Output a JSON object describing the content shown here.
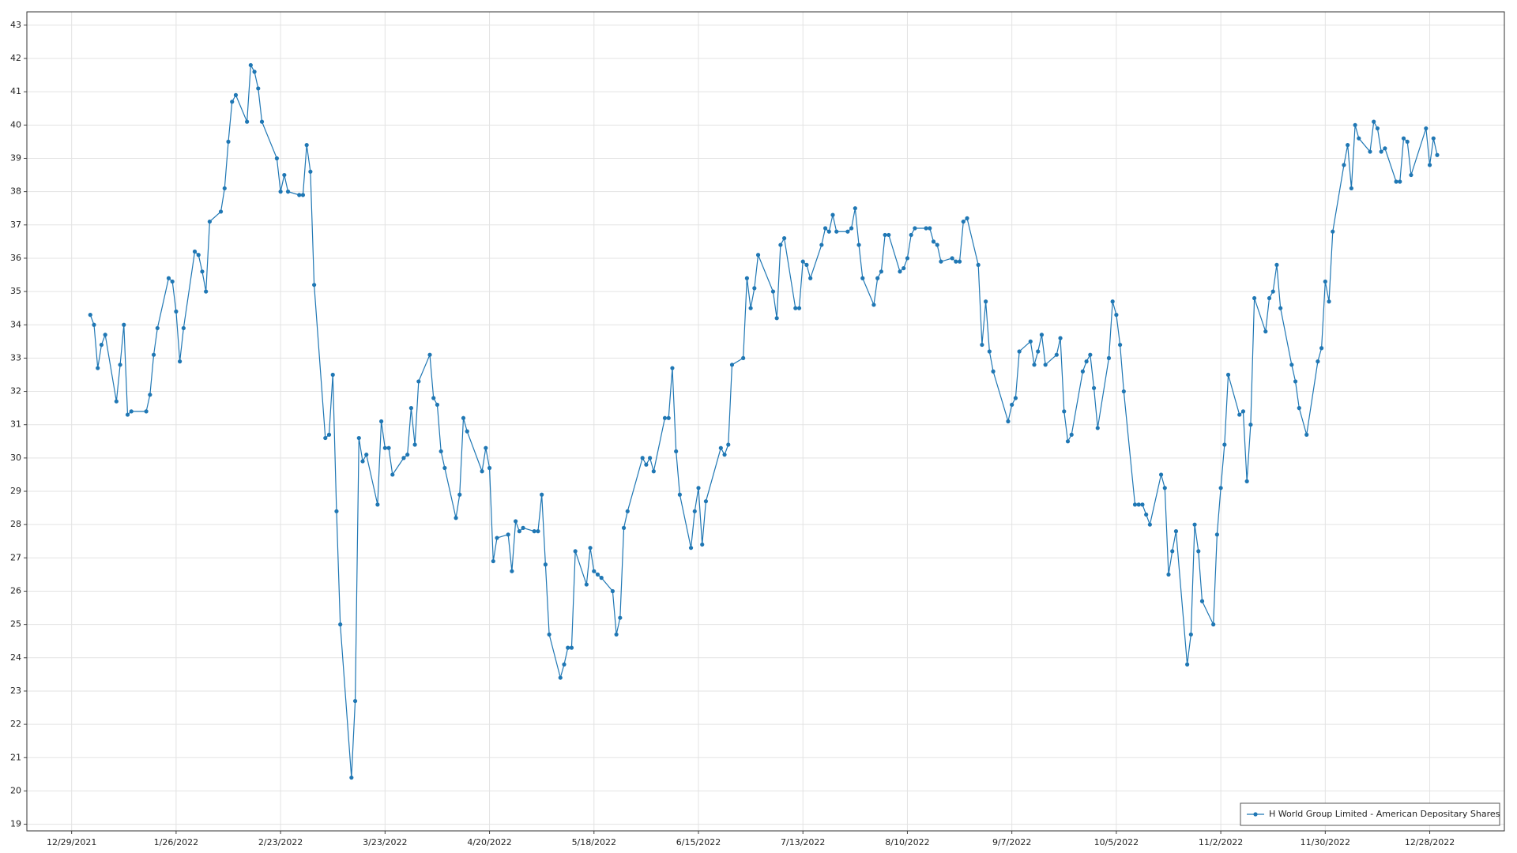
{
  "chart_data": {
    "type": "line",
    "x": [
      "1/3/2022",
      "1/4/2022",
      "1/5/2022",
      "1/6/2022",
      "1/7/2022",
      "1/10/2022",
      "1/11/2022",
      "1/12/2022",
      "1/13/2022",
      "1/14/2022",
      "1/18/2022",
      "1/19/2022",
      "1/20/2022",
      "1/21/2022",
      "1/24/2022",
      "1/25/2022",
      "1/26/2022",
      "1/27/2022",
      "1/28/2022",
      "1/31/2022",
      "2/1/2022",
      "2/2/2022",
      "2/3/2022",
      "2/4/2022",
      "2/7/2022",
      "2/8/2022",
      "2/9/2022",
      "2/10/2022",
      "2/11/2022",
      "2/14/2022",
      "2/15/2022",
      "2/16/2022",
      "2/17/2022",
      "2/18/2022",
      "2/22/2022",
      "2/23/2022",
      "2/24/2022",
      "2/25/2022",
      "2/28/2022",
      "3/1/2022",
      "3/2/2022",
      "3/3/2022",
      "3/4/2022",
      "3/7/2022",
      "3/8/2022",
      "3/9/2022",
      "3/10/2022",
      "3/11/2022",
      "3/14/2022",
      "3/15/2022",
      "3/16/2022",
      "3/17/2022",
      "3/18/2022",
      "3/21/2022",
      "3/22/2022",
      "3/23/2022",
      "3/24/2022",
      "3/25/2022",
      "3/28/2022",
      "3/29/2022",
      "3/30/2022",
      "3/31/2022",
      "4/1/2022",
      "4/4/2022",
      "4/5/2022",
      "4/6/2022",
      "4/7/2022",
      "4/8/2022",
      "4/11/2022",
      "4/12/2022",
      "4/13/2022",
      "4/14/2022",
      "4/18/2022",
      "4/19/2022",
      "4/20/2022",
      "4/21/2022",
      "4/22/2022",
      "4/25/2022",
      "4/26/2022",
      "4/27/2022",
      "4/28/2022",
      "4/29/2022",
      "5/2/2022",
      "5/3/2022",
      "5/4/2022",
      "5/5/2022",
      "5/6/2022",
      "5/9/2022",
      "5/10/2022",
      "5/11/2022",
      "5/12/2022",
      "5/13/2022",
      "5/16/2022",
      "5/17/2022",
      "5/18/2022",
      "5/19/2022",
      "5/20/2022",
      "5/23/2022",
      "5/24/2022",
      "5/25/2022",
      "5/26/2022",
      "5/27/2022",
      "5/31/2022",
      "6/1/2022",
      "6/2/2022",
      "6/3/2022",
      "6/6/2022",
      "6/7/2022",
      "6/8/2022",
      "6/9/2022",
      "6/10/2022",
      "6/13/2022",
      "6/14/2022",
      "6/15/2022",
      "6/16/2022",
      "6/17/2022",
      "6/21/2022",
      "6/22/2022",
      "6/23/2022",
      "6/24/2022",
      "6/27/2022",
      "6/28/2022",
      "6/29/2022",
      "6/30/2022",
      "7/1/2022",
      "7/5/2022",
      "7/6/2022",
      "7/7/2022",
      "7/8/2022",
      "7/11/2022",
      "7/12/2022",
      "7/13/2022",
      "7/14/2022",
      "7/15/2022",
      "7/18/2022",
      "7/19/2022",
      "7/20/2022",
      "7/21/2022",
      "7/22/2022",
      "7/25/2022",
      "7/26/2022",
      "7/27/2022",
      "7/28/2022",
      "7/29/2022",
      "8/1/2022",
      "8/2/2022",
      "8/3/2022",
      "8/4/2022",
      "8/5/2022",
      "8/8/2022",
      "8/9/2022",
      "8/10/2022",
      "8/11/2022",
      "8/12/2022",
      "8/15/2022",
      "8/16/2022",
      "8/17/2022",
      "8/18/2022",
      "8/19/2022",
      "8/22/2022",
      "8/23/2022",
      "8/24/2022",
      "8/25/2022",
      "8/26/2022",
      "8/29/2022",
      "8/30/2022",
      "8/31/2022",
      "9/1/2022",
      "9/2/2022",
      "9/6/2022",
      "9/7/2022",
      "9/8/2022",
      "9/9/2022",
      "9/12/2022",
      "9/13/2022",
      "9/14/2022",
      "9/15/2022",
      "9/16/2022",
      "9/19/2022",
      "9/20/2022",
      "9/21/2022",
      "9/22/2022",
      "9/23/2022",
      "9/26/2022",
      "9/27/2022",
      "9/28/2022",
      "9/29/2022",
      "9/30/2022",
      "10/3/2022",
      "10/4/2022",
      "10/5/2022",
      "10/6/2022",
      "10/7/2022",
      "10/10/2022",
      "10/11/2022",
      "10/12/2022",
      "10/13/2022",
      "10/14/2022",
      "10/17/2022",
      "10/18/2022",
      "10/19/2022",
      "10/20/2022",
      "10/21/2022",
      "10/24/2022",
      "10/25/2022",
      "10/26/2022",
      "10/27/2022",
      "10/28/2022",
      "10/31/2022",
      "11/1/2022",
      "11/2/2022",
      "11/3/2022",
      "11/4/2022",
      "11/7/2022",
      "11/8/2022",
      "11/9/2022",
      "11/10/2022",
      "11/11/2022",
      "11/14/2022",
      "11/15/2022",
      "11/16/2022",
      "11/17/2022",
      "11/18/2022",
      "11/21/2022",
      "11/22/2022",
      "11/23/2022",
      "11/25/2022",
      "11/28/2022",
      "11/29/2022",
      "11/30/2022",
      "12/1/2022",
      "12/2/2022",
      "12/5/2022",
      "12/6/2022",
      "12/7/2022",
      "12/8/2022",
      "12/9/2022",
      "12/12/2022",
      "12/13/2022",
      "12/14/2022",
      "12/15/2022",
      "12/16/2022",
      "12/19/2022",
      "12/20/2022",
      "12/21/2022",
      "12/22/2022",
      "12/23/2022",
      "12/27/2022",
      "12/28/2022",
      "12/29/2022",
      "12/30/2022"
    ],
    "series": [
      {
        "name": "H World Group Limited - American Depositary Shares",
        "color": "#1f77b4",
        "values": [
          34.3,
          34.0,
          32.7,
          33.4,
          33.7,
          31.7,
          32.8,
          34.0,
          31.3,
          31.4,
          31.4,
          31.9,
          33.1,
          33.9,
          35.4,
          35.3,
          34.4,
          32.9,
          33.9,
          36.2,
          36.1,
          35.6,
          35.0,
          37.1,
          37.4,
          38.1,
          39.5,
          40.7,
          40.9,
          40.1,
          41.8,
          41.6,
          41.1,
          40.1,
          39.0,
          38.0,
          38.5,
          38.0,
          37.9,
          37.9,
          39.4,
          38.6,
          35.2,
          30.6,
          30.7,
          32.5,
          28.4,
          25.0,
          20.4,
          22.7,
          30.6,
          29.9,
          30.1,
          28.6,
          31.1,
          30.3,
          30.3,
          29.5,
          30.0,
          30.1,
          31.5,
          30.4,
          32.3,
          33.1,
          31.8,
          31.6,
          30.2,
          29.7,
          28.2,
          28.9,
          31.2,
          30.8,
          29.6,
          30.3,
          29.7,
          26.9,
          27.6,
          27.7,
          26.6,
          28.1,
          27.8,
          27.9,
          27.8,
          27.8,
          28.9,
          26.8,
          24.7,
          23.4,
          23.8,
          24.3,
          24.3,
          27.2,
          26.2,
          27.3,
          26.6,
          26.5,
          26.4,
          26.0,
          24.7,
          25.2,
          27.9,
          28.4,
          30.0,
          29.8,
          30.0,
          29.6,
          31.2,
          31.2,
          32.7,
          30.2,
          28.9,
          27.3,
          28.4,
          29.1,
          27.4,
          28.7,
          30.3,
          30.1,
          30.4,
          32.8,
          33.0,
          35.4,
          34.5,
          35.1,
          36.1,
          35.0,
          34.2,
          36.4,
          36.6,
          34.5,
          34.5,
          35.9,
          35.8,
          35.4,
          36.4,
          36.9,
          36.8,
          37.3,
          36.8,
          36.8,
          36.9,
          37.5,
          36.4,
          35.4,
          34.6,
          35.4,
          35.6,
          36.7,
          36.7,
          35.6,
          35.7,
          36.0,
          36.7,
          36.9,
          36.9,
          36.9,
          36.5,
          36.4,
          35.9,
          36.0,
          35.9,
          35.9,
          37.1,
          37.2,
          35.8,
          33.4,
          34.7,
          33.2,
          32.6,
          31.1,
          31.6,
          31.8,
          33.2,
          33.5,
          32.8,
          33.2,
          33.7,
          32.8,
          33.1,
          33.6,
          31.4,
          30.5,
          30.7,
          32.6,
          32.9,
          33.1,
          32.1,
          30.9,
          33.0,
          34.7,
          34.3,
          33.4,
          32.0,
          28.6,
          28.6,
          28.6,
          28.3,
          28.0,
          29.5,
          29.1,
          26.5,
          27.2,
          27.8,
          23.8,
          24.7,
          28.0,
          27.2,
          25.7,
          25.0,
          27.7,
          29.1,
          30.4,
          32.5,
          31.3,
          31.4,
          29.3,
          31.0,
          34.8,
          33.8,
          34.8,
          35.0,
          35.8,
          34.5,
          32.8,
          32.3,
          31.5,
          30.7,
          32.9,
          33.3,
          35.3,
          34.7,
          36.8,
          38.8,
          39.4,
          38.1,
          40.0,
          39.6,
          39.2,
          40.1,
          39.9,
          39.2,
          39.3,
          38.3,
          38.3,
          39.6,
          39.5,
          38.5,
          39.9,
          38.8,
          39.6,
          39.1
        ]
      }
    ],
    "xlim": [
      "12/17/2021",
      "1/17/2023"
    ],
    "xticks": [
      "12/29/2021",
      "1/26/2022",
      "2/23/2022",
      "3/23/2022",
      "4/20/2022",
      "5/18/2022",
      "6/15/2022",
      "7/13/2022",
      "8/10/2022",
      "9/7/2022",
      "10/5/2022",
      "11/2/2022",
      "11/30/2022",
      "12/28/2022"
    ],
    "ylim": [
      18.8,
      43.4
    ],
    "yticks": [
      19,
      20,
      21,
      22,
      23,
      24,
      25,
      26,
      27,
      28,
      29,
      30,
      31,
      32,
      33,
      34,
      35,
      36,
      37,
      38,
      39,
      40,
      41,
      42,
      43
    ],
    "grid": true,
    "legend": "lower right"
  }
}
